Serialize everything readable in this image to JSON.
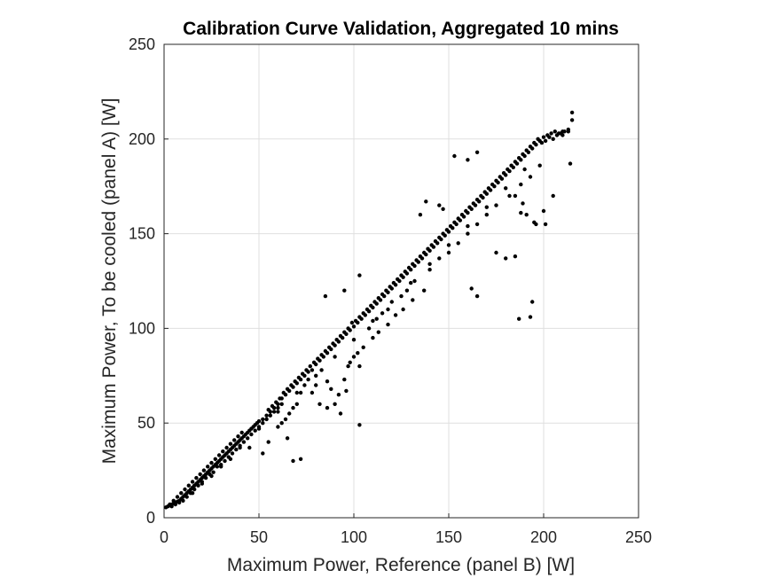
{
  "chart_data": {
    "type": "scatter",
    "title": "Calibration Curve Validation, Aggregated 10 mins",
    "xlabel": "Maximum Power, Reference (panel B) [W]",
    "ylabel": "Maximum Power, To be cooled (panel A) [W]",
    "xlim": [
      0,
      250
    ],
    "ylim": [
      0,
      250
    ],
    "xticks": [
      "0",
      "50",
      "100",
      "150",
      "200",
      "250"
    ],
    "yticks": [
      "0",
      "50",
      "100",
      "150",
      "200",
      "250"
    ],
    "grid": true,
    "legend": "none",
    "marker_color": "#000000",
    "points": [
      [
        1,
        5.5
      ],
      [
        2,
        6
      ],
      [
        3,
        6.5
      ],
      [
        4,
        7
      ],
      [
        5,
        7.5
      ],
      [
        6,
        8
      ],
      [
        7,
        8.5
      ],
      [
        8,
        9
      ],
      [
        9,
        10
      ],
      [
        10,
        11
      ],
      [
        11,
        12
      ],
      [
        12,
        13
      ],
      [
        13,
        14
      ],
      [
        14,
        15
      ],
      [
        15,
        16
      ],
      [
        16,
        17
      ],
      [
        17,
        18
      ],
      [
        18,
        19
      ],
      [
        19,
        20
      ],
      [
        20,
        21
      ],
      [
        21,
        22
      ],
      [
        22,
        23
      ],
      [
        23,
        24
      ],
      [
        24,
        25
      ],
      [
        25,
        26
      ],
      [
        26,
        27
      ],
      [
        27,
        28
      ],
      [
        28,
        29
      ],
      [
        29,
        30
      ],
      [
        30,
        31
      ],
      [
        31,
        32
      ],
      [
        32,
        33
      ],
      [
        33,
        34
      ],
      [
        34,
        35
      ],
      [
        35,
        36
      ],
      [
        36,
        37
      ],
      [
        37,
        38
      ],
      [
        38,
        39
      ],
      [
        39,
        40
      ],
      [
        40,
        41
      ],
      [
        41,
        42
      ],
      [
        42,
        43
      ],
      [
        43,
        44
      ],
      [
        44,
        45
      ],
      [
        45,
        46
      ],
      [
        46,
        47
      ],
      [
        47,
        48
      ],
      [
        48,
        49
      ],
      [
        49,
        50
      ],
      [
        50,
        51
      ],
      [
        4,
        6
      ],
      [
        6,
        7
      ],
      [
        8,
        8
      ],
      [
        10,
        9
      ],
      [
        12,
        11
      ],
      [
        14,
        13
      ],
      [
        16,
        15
      ],
      [
        18,
        17
      ],
      [
        20,
        19
      ],
      [
        22,
        21
      ],
      [
        24,
        23
      ],
      [
        26,
        24
      ],
      [
        28,
        27
      ],
      [
        30,
        28
      ],
      [
        32,
        30
      ],
      [
        34,
        32
      ],
      [
        36,
        34
      ],
      [
        38,
        36
      ],
      [
        40,
        38
      ],
      [
        42,
        40
      ],
      [
        44,
        42
      ],
      [
        46,
        44
      ],
      [
        48,
        46
      ],
      [
        50,
        48
      ],
      [
        52,
        50
      ],
      [
        54,
        52
      ],
      [
        56,
        54
      ],
      [
        58,
        56
      ],
      [
        60,
        58
      ],
      [
        62,
        60
      ],
      [
        3,
        7
      ],
      [
        5,
        9
      ],
      [
        7,
        11
      ],
      [
        9,
        13
      ],
      [
        11,
        15
      ],
      [
        13,
        17
      ],
      [
        15,
        19
      ],
      [
        17,
        21
      ],
      [
        19,
        23
      ],
      [
        21,
        25
      ],
      [
        23,
        27
      ],
      [
        25,
        29
      ],
      [
        27,
        31
      ],
      [
        29,
        33
      ],
      [
        31,
        35
      ],
      [
        33,
        37
      ],
      [
        35,
        39
      ],
      [
        37,
        41
      ],
      [
        39,
        43
      ],
      [
        41,
        45
      ],
      [
        52,
        52
      ],
      [
        54,
        54
      ],
      [
        56,
        56
      ],
      [
        58,
        58
      ],
      [
        60,
        60
      ],
      [
        62,
        63
      ],
      [
        64,
        65
      ],
      [
        66,
        67
      ],
      [
        68,
        69
      ],
      [
        70,
        71
      ],
      [
        72,
        73
      ],
      [
        74,
        75
      ],
      [
        76,
        77
      ],
      [
        78,
        78
      ],
      [
        80,
        81
      ],
      [
        82,
        83
      ],
      [
        84,
        85
      ],
      [
        86,
        87
      ],
      [
        88,
        89
      ],
      [
        90,
        91
      ],
      [
        55,
        57
      ],
      [
        57,
        59
      ],
      [
        59,
        61
      ],
      [
        61,
        63
      ],
      [
        63,
        66
      ],
      [
        65,
        68
      ],
      [
        67,
        70
      ],
      [
        69,
        72
      ],
      [
        71,
        74
      ],
      [
        73,
        76
      ],
      [
        75,
        78
      ],
      [
        77,
        80
      ],
      [
        79,
        82
      ],
      [
        81,
        84
      ],
      [
        83,
        86
      ],
      [
        85,
        88
      ],
      [
        87,
        90
      ],
      [
        89,
        92
      ],
      [
        91,
        94
      ],
      [
        93,
        96
      ],
      [
        92,
        93
      ],
      [
        94,
        95
      ],
      [
        96,
        97
      ],
      [
        98,
        99
      ],
      [
        100,
        101
      ],
      [
        102,
        103
      ],
      [
        104,
        105
      ],
      [
        106,
        107
      ],
      [
        108,
        109
      ],
      [
        110,
        111
      ],
      [
        112,
        113
      ],
      [
        114,
        115
      ],
      [
        116,
        117
      ],
      [
        118,
        119
      ],
      [
        120,
        121
      ],
      [
        122,
        123
      ],
      [
        124,
        125
      ],
      [
        126,
        127
      ],
      [
        128,
        129
      ],
      [
        130,
        131
      ],
      [
        95,
        98
      ],
      [
        97,
        100
      ],
      [
        99,
        103
      ],
      [
        101,
        104
      ],
      [
        103,
        106
      ],
      [
        105,
        108
      ],
      [
        107,
        110
      ],
      [
        109,
        112
      ],
      [
        111,
        114
      ],
      [
        113,
        116
      ],
      [
        115,
        118
      ],
      [
        117,
        120
      ],
      [
        119,
        122
      ],
      [
        121,
        124
      ],
      [
        123,
        126
      ],
      [
        125,
        128
      ],
      [
        127,
        130
      ],
      [
        129,
        132
      ],
      [
        131,
        134
      ],
      [
        133,
        136
      ],
      [
        132,
        133
      ],
      [
        134,
        135
      ],
      [
        136,
        137
      ],
      [
        138,
        139
      ],
      [
        140,
        141
      ],
      [
        142,
        143
      ],
      [
        144,
        145
      ],
      [
        146,
        147
      ],
      [
        148,
        149
      ],
      [
        150,
        151
      ],
      [
        152,
        153
      ],
      [
        154,
        155
      ],
      [
        156,
        157
      ],
      [
        158,
        159
      ],
      [
        160,
        161
      ],
      [
        162,
        163
      ],
      [
        164,
        165
      ],
      [
        166,
        167
      ],
      [
        168,
        169
      ],
      [
        170,
        171
      ],
      [
        135,
        138
      ],
      [
        137,
        140
      ],
      [
        139,
        142
      ],
      [
        141,
        144
      ],
      [
        143,
        146
      ],
      [
        145,
        148
      ],
      [
        147,
        150
      ],
      [
        149,
        152
      ],
      [
        151,
        154
      ],
      [
        153,
        156
      ],
      [
        155,
        158
      ],
      [
        157,
        160
      ],
      [
        159,
        162
      ],
      [
        161,
        164
      ],
      [
        163,
        166
      ],
      [
        165,
        168
      ],
      [
        167,
        170
      ],
      [
        169,
        172
      ],
      [
        171,
        174
      ],
      [
        173,
        176
      ],
      [
        172,
        173
      ],
      [
        174,
        175
      ],
      [
        176,
        177
      ],
      [
        178,
        179
      ],
      [
        180,
        181
      ],
      [
        182,
        183
      ],
      [
        184,
        185
      ],
      [
        186,
        187
      ],
      [
        188,
        189
      ],
      [
        190,
        191
      ],
      [
        175,
        178
      ],
      [
        177,
        180
      ],
      [
        179,
        182
      ],
      [
        181,
        184
      ],
      [
        183,
        186
      ],
      [
        185,
        188
      ],
      [
        187,
        190
      ],
      [
        189,
        192
      ],
      [
        191,
        194
      ],
      [
        193,
        196
      ],
      [
        192,
        193
      ],
      [
        194,
        195
      ],
      [
        196,
        197
      ],
      [
        198,
        199
      ],
      [
        200,
        201
      ],
      [
        202,
        202
      ],
      [
        204,
        203
      ],
      [
        206,
        204
      ],
      [
        208,
        203
      ],
      [
        210,
        202
      ],
      [
        195,
        198
      ],
      [
        197,
        200
      ],
      [
        199,
        198
      ],
      [
        201,
        199
      ],
      [
        203,
        201
      ],
      [
        205,
        200
      ],
      [
        207,
        202
      ],
      [
        209,
        203
      ],
      [
        211,
        204
      ],
      [
        213,
        204
      ],
      [
        20,
        18
      ],
      [
        30,
        27
      ],
      [
        40,
        37
      ],
      [
        50,
        47
      ],
      [
        60,
        56
      ],
      [
        70,
        66
      ],
      [
        80,
        75
      ],
      [
        90,
        85
      ],
      [
        100,
        94
      ],
      [
        110,
        104
      ],
      [
        120,
        114
      ],
      [
        130,
        124
      ],
      [
        140,
        134
      ],
      [
        150,
        144
      ],
      [
        160,
        154
      ],
      [
        170,
        164
      ],
      [
        180,
        174
      ],
      [
        190,
        184
      ],
      [
        85,
        117
      ],
      [
        95,
        120
      ],
      [
        103,
        128
      ],
      [
        138,
        167
      ],
      [
        147,
        163
      ],
      [
        153,
        191
      ],
      [
        160,
        189
      ],
      [
        165,
        193
      ],
      [
        135,
        160
      ],
      [
        145,
        165
      ],
      [
        108,
        100
      ],
      [
        112,
        105
      ],
      [
        115,
        108
      ],
      [
        118,
        110
      ],
      [
        125,
        117
      ],
      [
        128,
        120
      ],
      [
        132,
        125
      ],
      [
        140,
        131
      ],
      [
        145,
        137
      ],
      [
        150,
        140
      ],
      [
        98,
        82
      ],
      [
        102,
        87
      ],
      [
        105,
        90
      ],
      [
        110,
        95
      ],
      [
        113,
        98
      ],
      [
        118,
        102
      ],
      [
        122,
        107
      ],
      [
        126,
        110
      ],
      [
        131,
        115
      ],
      [
        137,
        120
      ],
      [
        155,
        145
      ],
      [
        160,
        150
      ],
      [
        165,
        155
      ],
      [
        170,
        160
      ],
      [
        175,
        165
      ],
      [
        182,
        170
      ],
      [
        188,
        176
      ],
      [
        193,
        180
      ],
      [
        198,
        186
      ],
      [
        83,
        78
      ],
      [
        86,
        72
      ],
      [
        88,
        68
      ],
      [
        90,
        60
      ],
      [
        92,
        65
      ],
      [
        95,
        73
      ],
      [
        97,
        80
      ],
      [
        100,
        85
      ],
      [
        103,
        80
      ],
      [
        80,
        70
      ],
      [
        78,
        66
      ],
      [
        76,
        73
      ],
      [
        74,
        70
      ],
      [
        72,
        66
      ],
      [
        70,
        60
      ],
      [
        68,
        58
      ],
      [
        66,
        55
      ],
      [
        64,
        52
      ],
      [
        62,
        50
      ],
      [
        60,
        48
      ],
      [
        65,
        42
      ],
      [
        55,
        40
      ],
      [
        45,
        37
      ],
      [
        35,
        31
      ],
      [
        25,
        22
      ],
      [
        15,
        13
      ],
      [
        52,
        34
      ],
      [
        68,
        30
      ],
      [
        72,
        31
      ],
      [
        86,
        58
      ],
      [
        96,
        67
      ],
      [
        103,
        49
      ],
      [
        93,
        55
      ],
      [
        82,
        60
      ],
      [
        162,
        121
      ],
      [
        165,
        117
      ],
      [
        175,
        140
      ],
      [
        180,
        137
      ],
      [
        185,
        138
      ],
      [
        187,
        105
      ],
      [
        193,
        106
      ],
      [
        194,
        114
      ],
      [
        195,
        156
      ],
      [
        188,
        161
      ],
      [
        191,
        160
      ],
      [
        196,
        155
      ],
      [
        200,
        162
      ],
      [
        205,
        170
      ],
      [
        201,
        155
      ],
      [
        189,
        166
      ],
      [
        185,
        170
      ],
      [
        214,
        187
      ],
      [
        215,
        210
      ],
      [
        215,
        214
      ],
      [
        213,
        205
      ],
      [
        210,
        204
      ]
    ]
  }
}
